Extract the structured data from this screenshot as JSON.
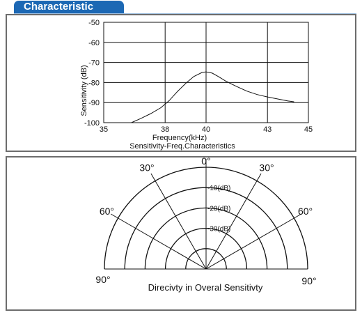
{
  "header": {
    "title": "Characteristic"
  },
  "chart_data": [
    {
      "type": "line",
      "title": "Sensitivity-Freq.Characteristics",
      "xlabel": "Frequency(kHz)",
      "ylabel": "Sensitivity (dB)",
      "xlim": [
        35,
        45
      ],
      "ylim": [
        -100,
        -50
      ],
      "x_ticks": [
        35,
        38,
        40,
        43,
        45
      ],
      "y_ticks": [
        -50,
        -60,
        -70,
        -80,
        -90,
        -100
      ],
      "grid": true,
      "series": [
        {
          "x": [
            36.35,
            36.8,
            37.3,
            37.8,
            38.2,
            38.6,
            39.0,
            39.4,
            39.8,
            40.0,
            40.3,
            40.6,
            41.0,
            41.5,
            42.0,
            42.5,
            43.0,
            43.5,
            44.0,
            44.3
          ],
          "y": [
            -100,
            -98,
            -95.5,
            -92.5,
            -89,
            -84.5,
            -80.5,
            -77,
            -75,
            -74.7,
            -75.3,
            -77,
            -79.5,
            -82,
            -84.3,
            -86,
            -87.2,
            -88.2,
            -89.2,
            -89.6
          ]
        }
      ]
    },
    {
      "type": "polar",
      "title": "Direcivty in Overal  Sensitivty",
      "angle_labels": [
        "0°",
        "30°",
        "30°",
        "60°",
        "60°",
        "90°",
        "90°"
      ],
      "ring_labels": [
        "-10(dB)",
        "-20(dB)",
        "-30(dB)"
      ],
      "angles_deg": [
        -90,
        -60,
        -30,
        0,
        30,
        60,
        90
      ],
      "rings_db": [
        0,
        -10,
        -20,
        -30,
        -40
      ]
    }
  ]
}
